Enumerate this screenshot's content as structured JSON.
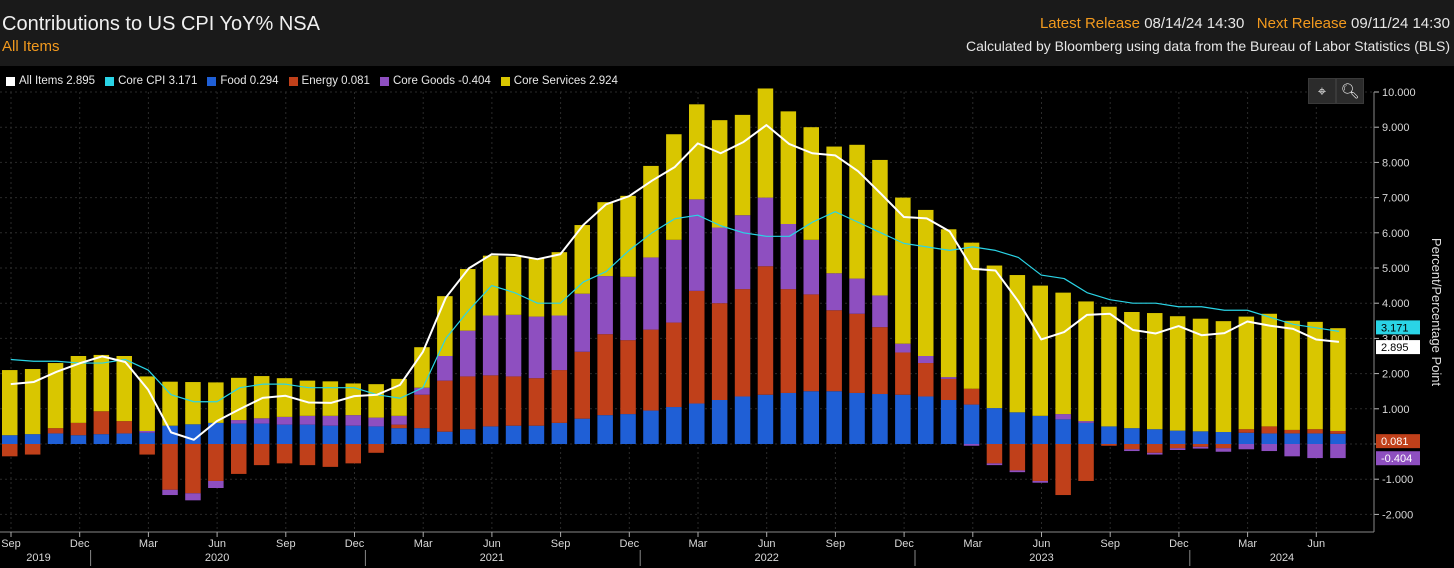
{
  "header": {
    "title": "Contributions to US CPI YoY% NSA",
    "subtitle": "All Items",
    "latest_release_label": "Latest Release",
    "latest_release_value": "08/14/24 14:30",
    "next_release_label": "Next Release",
    "next_release_value": "09/11/24 14:30",
    "source_note": "Calculated by Bloomberg using data from the Bureau of Labor Statistics (BLS)"
  },
  "toolbar": {
    "crosshair_icon": "crosshair-icon",
    "zoom_icon": "zoom-icon"
  },
  "legend": [
    {
      "key": "all",
      "text": "All Items 2.895",
      "color": "#ffffff"
    },
    {
      "key": "core_cpi",
      "text": "Core CPI 3.171",
      "color": "#2ad4e6"
    },
    {
      "key": "food",
      "text": "Food 0.294",
      "color": "#1f5fd6"
    },
    {
      "key": "energy",
      "text": "Energy 0.081",
      "color": "#c0401a"
    },
    {
      "key": "core_goods",
      "text": "Core Goods -0.404",
      "color": "#8e4fc0"
    },
    {
      "key": "core_services",
      "text": "Core Services 2.924",
      "color": "#d9c600"
    }
  ],
  "chart_data": {
    "type": "bar",
    "stacked": true,
    "ylabel": "Percent/Percentage Point",
    "ylim": [
      -2.5,
      10
    ],
    "y_ticks": [
      "-2.000",
      "-1.000",
      "0.000",
      "1.000",
      "2.000",
      "3.000",
      "4.000",
      "5.000",
      "6.000",
      "7.000",
      "8.000",
      "9.000",
      "10.000"
    ],
    "x_tick_months": [
      "Sep",
      "Dec",
      "Mar",
      "Jun",
      "Sep",
      "Dec",
      "Mar",
      "Jun",
      "Sep",
      "Dec",
      "Mar",
      "Jun",
      "Sep",
      "Dec",
      "Mar",
      "Jun",
      "Sep",
      "Dec",
      "Mar",
      "Jun"
    ],
    "x_tick_years": [
      "2019",
      "2020",
      "2021",
      "2022",
      "2023",
      "2024"
    ],
    "categories": [
      "2019-09",
      "2019-10",
      "2019-11",
      "2019-12",
      "2020-01",
      "2020-02",
      "2020-03",
      "2020-04",
      "2020-05",
      "2020-06",
      "2020-07",
      "2020-08",
      "2020-09",
      "2020-10",
      "2020-11",
      "2020-12",
      "2021-01",
      "2021-02",
      "2021-03",
      "2021-04",
      "2021-05",
      "2021-06",
      "2021-07",
      "2021-08",
      "2021-09",
      "2021-10",
      "2021-11",
      "2021-12",
      "2022-01",
      "2022-02",
      "2022-03",
      "2022-04",
      "2022-05",
      "2022-06",
      "2022-07",
      "2022-08",
      "2022-09",
      "2022-10",
      "2022-11",
      "2022-12",
      "2023-01",
      "2023-02",
      "2023-03",
      "2023-04",
      "2023-05",
      "2023-06",
      "2023-07",
      "2023-08",
      "2023-09",
      "2023-10",
      "2023-11",
      "2023-12",
      "2024-01",
      "2024-02",
      "2024-03",
      "2024-04",
      "2024-05",
      "2024-06",
      "2024-07"
    ],
    "series": [
      {
        "name": "Food",
        "color": "#1f5fd6",
        "values": [
          0.25,
          0.28,
          0.3,
          0.25,
          0.28,
          0.3,
          0.32,
          0.52,
          0.56,
          0.6,
          0.58,
          0.58,
          0.55,
          0.55,
          0.52,
          0.52,
          0.5,
          0.45,
          0.45,
          0.35,
          0.42,
          0.5,
          0.52,
          0.52,
          0.6,
          0.72,
          0.82,
          0.85,
          0.95,
          1.05,
          1.15,
          1.25,
          1.35,
          1.4,
          1.45,
          1.5,
          1.5,
          1.45,
          1.42,
          1.4,
          1.35,
          1.25,
          1.12,
          1.02,
          0.9,
          0.8,
          0.7,
          0.6,
          0.5,
          0.45,
          0.42,
          0.38,
          0.36,
          0.34,
          0.32,
          0.3,
          0.3,
          0.3,
          0.29
        ]
      },
      {
        "name": "Energy",
        "color": "#c0401a",
        "values": [
          -0.35,
          -0.3,
          0.15,
          0.35,
          0.65,
          0.35,
          -0.3,
          -1.3,
          -1.4,
          -1.05,
          -0.85,
          -0.6,
          -0.55,
          -0.6,
          -0.65,
          -0.55,
          -0.25,
          0.1,
          0.95,
          1.45,
          1.5,
          1.45,
          1.4,
          1.35,
          1.5,
          1.9,
          2.3,
          2.1,
          2.3,
          2.4,
          3.2,
          2.75,
          3.05,
          3.65,
          2.95,
          2.75,
          2.3,
          2.25,
          1.9,
          1.2,
          0.95,
          0.6,
          0.45,
          -0.55,
          -0.75,
          -1.05,
          -1.45,
          -1.05,
          -0.05,
          -0.15,
          -0.25,
          -0.12,
          -0.08,
          -0.12,
          0.1,
          0.2,
          0.1,
          0.12,
          0.08
        ]
      },
      {
        "name": "Core Goods",
        "color": "#8e4fc0",
        "values": [
          0.0,
          0.0,
          0.0,
          0.0,
          0.0,
          0.0,
          0.05,
          -0.15,
          -0.2,
          -0.2,
          0.1,
          0.15,
          0.22,
          0.25,
          0.28,
          0.3,
          0.25,
          0.25,
          0.2,
          0.7,
          1.3,
          1.7,
          1.75,
          1.75,
          1.55,
          1.65,
          1.65,
          1.8,
          2.05,
          2.35,
          2.6,
          2.15,
          2.1,
          1.95,
          1.85,
          1.55,
          1.05,
          1.0,
          0.9,
          0.25,
          0.2,
          0.05,
          -0.05,
          -0.05,
          -0.05,
          -0.05,
          0.15,
          0.05,
          0.0,
          -0.05,
          -0.05,
          -0.05,
          -0.05,
          -0.1,
          -0.15,
          -0.2,
          -0.35,
          -0.4,
          -0.4
        ]
      },
      {
        "name": "Core Services",
        "color": "#d9c600",
        "values": [
          1.85,
          1.85,
          1.85,
          1.9,
          1.6,
          1.85,
          1.55,
          1.25,
          1.2,
          1.15,
          1.2,
          1.2,
          1.1,
          1.0,
          0.98,
          0.9,
          0.95,
          1.05,
          1.15,
          1.7,
          1.75,
          1.7,
          1.65,
          1.65,
          1.8,
          1.95,
          2.1,
          2.3,
          2.6,
          3.0,
          2.7,
          3.05,
          2.85,
          3.1,
          3.2,
          3.2,
          3.6,
          3.8,
          3.85,
          4.15,
          4.15,
          4.2,
          4.15,
          4.05,
          3.9,
          3.7,
          3.45,
          3.4,
          3.4,
          3.3,
          3.3,
          3.25,
          3.2,
          3.15,
          3.2,
          3.2,
          3.1,
          3.05,
          2.92
        ]
      },
      {
        "name": "All Items",
        "color": "#ffffff",
        "kind": "line",
        "values": [
          1.7,
          1.76,
          2.05,
          2.29,
          2.49,
          2.33,
          1.54,
          0.33,
          0.12,
          0.65,
          0.99,
          1.31,
          1.37,
          1.18,
          1.17,
          1.36,
          1.4,
          1.68,
          2.62,
          4.16,
          4.99,
          5.39,
          5.37,
          5.25,
          5.39,
          6.22,
          6.81,
          7.04,
          7.48,
          7.87,
          8.54,
          8.26,
          8.58,
          9.06,
          8.52,
          8.26,
          8.2,
          7.75,
          7.11,
          6.45,
          6.41,
          6.04,
          4.98,
          4.93,
          4.05,
          2.97,
          3.18,
          3.67,
          3.7,
          3.24,
          3.14,
          3.35,
          3.09,
          3.15,
          3.48,
          3.36,
          3.27,
          2.97,
          2.9
        ]
      },
      {
        "name": "Core CPI",
        "color": "#2ad4e6",
        "kind": "line",
        "values": [
          2.4,
          2.35,
          2.35,
          2.3,
          2.3,
          2.4,
          2.1,
          1.4,
          1.2,
          1.2,
          1.6,
          1.7,
          1.7,
          1.6,
          1.6,
          1.6,
          1.4,
          1.3,
          1.6,
          3.0,
          3.8,
          4.5,
          4.3,
          4.0,
          4.0,
          4.6,
          4.9,
          5.5,
          6.0,
          6.4,
          6.5,
          6.2,
          6.0,
          5.9,
          5.9,
          6.3,
          6.6,
          6.3,
          6.0,
          5.7,
          5.6,
          5.5,
          5.6,
          5.5,
          5.3,
          4.8,
          4.7,
          4.3,
          4.1,
          4.0,
          4.0,
          3.9,
          3.9,
          3.8,
          3.8,
          3.6,
          3.4,
          3.3,
          3.2
        ]
      }
    ],
    "last_value_labels": [
      {
        "text": "3.171",
        "value": 3.171,
        "color": "#2ad4e6",
        "text_color": "#000000"
      },
      {
        "text": "2.895",
        "value": 2.895,
        "color": "#ffffff",
        "text_color": "#000000"
      },
      {
        "text": "0.081",
        "value": 0.081,
        "color": "#c0401a",
        "text_color": "#ffffff"
      },
      {
        "text": "-0.404",
        "value": -0.404,
        "color": "#8e4fc0",
        "text_color": "#ffffff"
      }
    ]
  }
}
